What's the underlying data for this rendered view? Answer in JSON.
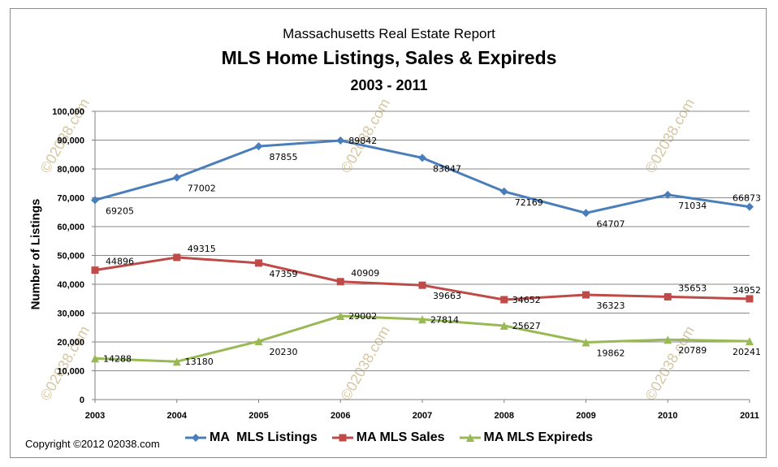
{
  "chart_data": {
    "type": "line",
    "title": "MLS Home Listings, Sales & Expireds",
    "supertitle": "Massachusetts  Real Estate Report",
    "subtitle": "2003 - 2011",
    "xlabel": "",
    "ylabel": "Number of Listings",
    "x": [
      "2003",
      "2004",
      "2005",
      "2006",
      "2007",
      "2008",
      "2009",
      "2010",
      "2011"
    ],
    "ylim": [
      0,
      100000
    ],
    "yticks": [
      "0",
      "10,000",
      "20,000",
      "30,000",
      "40,000",
      "50,000",
      "60,000",
      "70,000",
      "80,000",
      "90,000",
      "100,000"
    ],
    "grid": true,
    "legend": "bottom",
    "series": [
      {
        "name": "MA  MLS Listings",
        "color": "#4a7ebb",
        "marker": "diamond",
        "values": [
          69205,
          77002,
          87855,
          89842,
          83847,
          72169,
          64707,
          71034,
          66873
        ]
      },
      {
        "name": "MA MLS Sales",
        "color": "#be4b48",
        "marker": "square",
        "values": [
          44896,
          49315,
          47359,
          40909,
          39663,
          34652,
          36323,
          35653,
          34952
        ]
      },
      {
        "name": "MA MLS Expireds",
        "color": "#98b954",
        "marker": "triangle",
        "values": [
          14288,
          13180,
          20230,
          29002,
          27814,
          25627,
          19862,
          20789,
          20241
        ]
      }
    ],
    "watermark": "©02038.com"
  },
  "footer": {
    "copyright": "Copyright  ©2012  02038.com"
  }
}
